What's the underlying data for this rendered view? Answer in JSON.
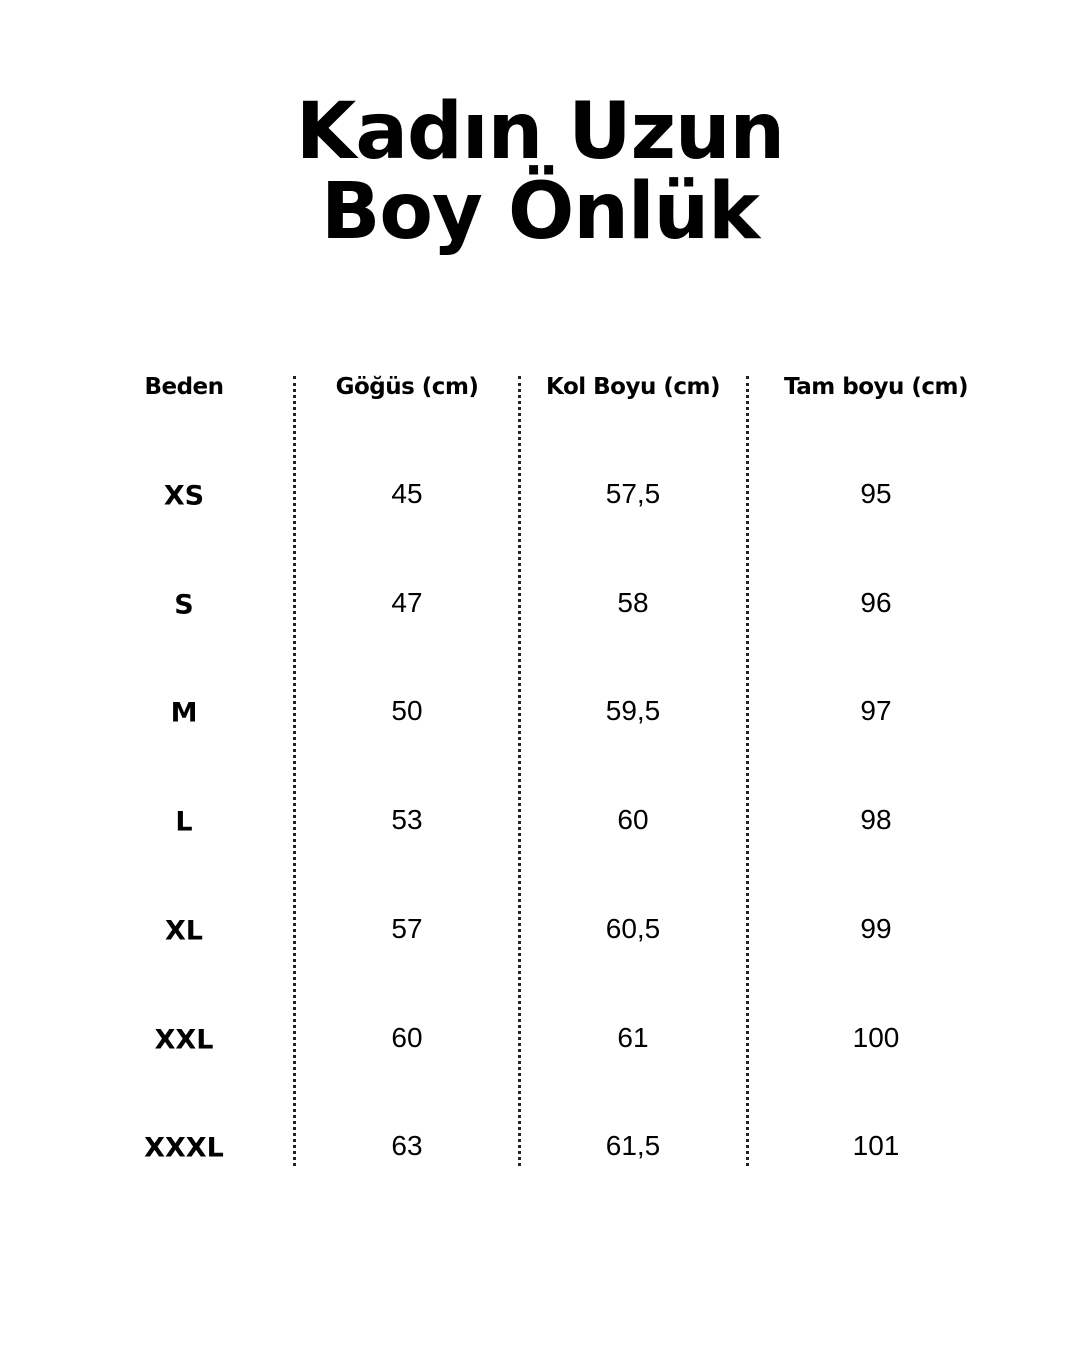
{
  "title": {
    "line1": "Kadın Uzun",
    "line2": "Boy Önlük"
  },
  "table": {
    "headers": [
      "Beden",
      "Göğüs (cm)",
      "Kol Boyu (cm)",
      "Tam boyu (cm)"
    ],
    "rows": [
      [
        "XS",
        "45",
        "57,5",
        "95"
      ],
      [
        "S",
        "47",
        "58",
        "96"
      ],
      [
        "M",
        "50",
        "59,5",
        "97"
      ],
      [
        "L",
        "53",
        "60",
        "98"
      ],
      [
        "XL",
        "57",
        "60,5",
        "99"
      ],
      [
        "XXL",
        "60",
        "61",
        "100"
      ],
      [
        "XXXL",
        "63",
        "61,5",
        "101"
      ]
    ]
  }
}
